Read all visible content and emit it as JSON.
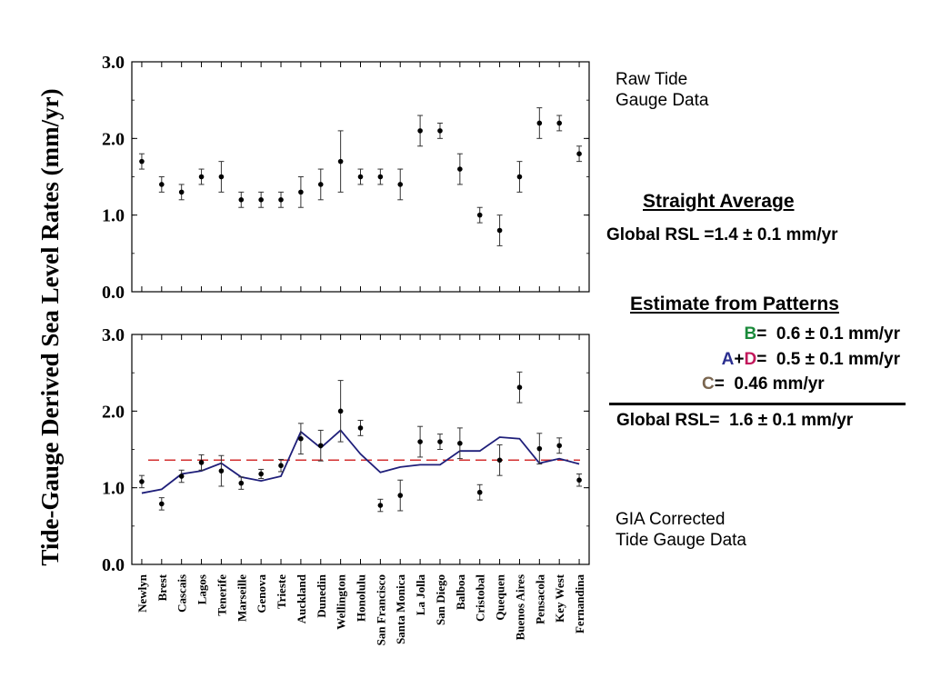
{
  "ylabel": "Tide-Gauge Derived Sea Level Rates (mm/yr)",
  "notes": {
    "raw_line1": "Raw Tide",
    "raw_line2": "Gauge Data",
    "gia_line1": "GIA Corrected",
    "gia_line2": "Tide Gauge Data"
  },
  "straight_average": {
    "heading": "Straight Average",
    "label": "Global RSL =",
    "value": "1.4 ± 0.1 mm/yr"
  },
  "patterns": {
    "heading": "Estimate from Patterns",
    "b_letter": "B",
    "b_eq": "=",
    "b_value": "0.6 ± 0.1 mm/yr",
    "a_letter": "A",
    "plus": "+",
    "d_letter": "D",
    "ad_eq": "=",
    "ad_value": "0.5 ± 0.1 mm/yr",
    "c_letter": "C",
    "c_eq": "=",
    "c_value": "0.46 mm/yr",
    "global_label": "Global RSL=",
    "global_value": "1.6 ± 0.1 mm/yr"
  },
  "colors": {
    "model_line": "#1f1f7a",
    "average_line": "#d32f2f",
    "b_color": "#1a8a3a",
    "d_color": "#c2185b",
    "a_color": "#2b2f8f",
    "c_color": "#7a6650"
  },
  "chart_data": [
    {
      "type": "scatter",
      "panel": "top",
      "ylim": [
        0,
        3.0
      ],
      "yticks": [
        "0.0",
        "1.0",
        "2.0",
        "3.0"
      ],
      "categories": [
        "Newlyn",
        "Brest",
        "Cascais",
        "Lagos",
        "Tenerife",
        "Marseille",
        "Genova",
        "Trieste",
        "Auckland",
        "Dunedin",
        "Wellington",
        "Honolulu",
        "San Francisco",
        "Santa Monica",
        "La Jolla",
        "San Diego",
        "Balboa",
        "Cristobal",
        "Quequen",
        "Buenos Aires",
        "Pensacola",
        "Key West",
        "Fernandina"
      ],
      "values": [
        1.7,
        1.4,
        1.3,
        1.5,
        1.5,
        1.2,
        1.2,
        1.2,
        1.3,
        1.4,
        1.7,
        1.5,
        1.5,
        1.4,
        2.1,
        2.1,
        1.6,
        1.0,
        0.8,
        1.5,
        2.2,
        2.2,
        1.8
      ],
      "errors": [
        0.1,
        0.1,
        0.1,
        0.1,
        0.2,
        0.1,
        0.1,
        0.1,
        0.2,
        0.2,
        0.4,
        0.1,
        0.1,
        0.2,
        0.2,
        0.1,
        0.2,
        0.1,
        0.2,
        0.2,
        0.2,
        0.1,
        0.1
      ]
    },
    {
      "type": "scatter",
      "panel": "bottom",
      "ylim": [
        0,
        3.0
      ],
      "yticks": [
        "0.0",
        "1.0",
        "2.0",
        "3.0"
      ],
      "categories": [
        "Newlyn",
        "Brest",
        "Cascais",
        "Lagos",
        "Tenerife",
        "Marseille",
        "Genova",
        "Trieste",
        "Auckland",
        "Dunedin",
        "Wellington",
        "Honolulu",
        "San Francisco",
        "Santa Monica",
        "La Jolla",
        "San Diego",
        "Balboa",
        "Cristobal",
        "Quequen",
        "Buenos Aires",
        "Pensacola",
        "Key West",
        "Fernandina"
      ],
      "values": [
        1.08,
        0.79,
        1.15,
        1.33,
        1.22,
        1.06,
        1.18,
        1.29,
        1.64,
        1.55,
        2.0,
        1.78,
        0.77,
        0.9,
        1.6,
        1.6,
        1.58,
        0.94,
        1.36,
        2.31,
        1.51,
        1.55,
        1.1
      ],
      "errors": [
        0.08,
        0.08,
        0.08,
        0.1,
        0.2,
        0.08,
        0.06,
        0.08,
        0.2,
        0.2,
        0.4,
        0.1,
        0.08,
        0.2,
        0.2,
        0.1,
        0.2,
        0.1,
        0.2,
        0.2,
        0.2,
        0.1,
        0.08
      ],
      "model_line": [
        0.93,
        0.98,
        1.18,
        1.22,
        1.32,
        1.14,
        1.09,
        1.15,
        1.73,
        1.52,
        1.75,
        1.44,
        1.2,
        1.27,
        1.3,
        1.3,
        1.48,
        1.48,
        1.66,
        1.64,
        1.32,
        1.38,
        1.31
      ],
      "average_line": 1.36
    }
  ]
}
